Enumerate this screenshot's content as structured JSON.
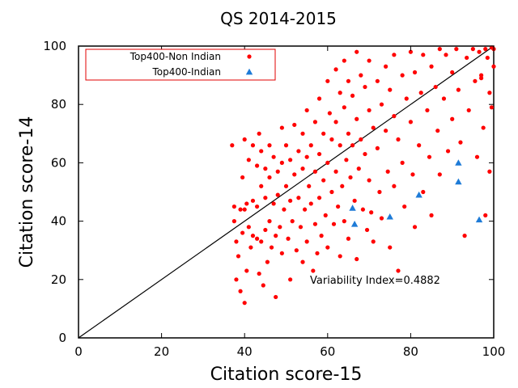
{
  "chart_data": {
    "type": "scatter",
    "title": "QS 2014-2015",
    "xlabel": "Citation score-15",
    "ylabel": "Citation score-14",
    "xlim": [
      0,
      100
    ],
    "ylim": [
      0,
      100
    ],
    "xticks": [
      0,
      20,
      40,
      60,
      80,
      100
    ],
    "yticks": [
      0,
      20,
      40,
      60,
      80,
      100
    ],
    "grid": false,
    "legend_position": "top-left",
    "annotation": "Variability Index=0.4882",
    "reference_line": {
      "x": [
        0,
        100
      ],
      "y": [
        0,
        100
      ],
      "color": "#000000"
    },
    "series": [
      {
        "name": "Top400-Non Indian",
        "marker": "circle",
        "color": "#ff0000",
        "points": [
          [
            37.0,
            66.0
          ],
          [
            37.5,
            45.0
          ],
          [
            37.5,
            40.0
          ],
          [
            38.0,
            33.0
          ],
          [
            38.0,
            20.0
          ],
          [
            38.5,
            28.0
          ],
          [
            39.0,
            44.0
          ],
          [
            39.0,
            16.0
          ],
          [
            39.5,
            55.0
          ],
          [
            39.5,
            36.0
          ],
          [
            40.0,
            68.0
          ],
          [
            40.0,
            44.0
          ],
          [
            40.0,
            12.0
          ],
          [
            40.5,
            98.0
          ],
          [
            40.5,
            46.0
          ],
          [
            40.5,
            23.0
          ],
          [
            41.0,
            61.0
          ],
          [
            41.0,
            38.0
          ],
          [
            41.5,
            31.0
          ],
          [
            42.0,
            66.0
          ],
          [
            42.0,
            47.0
          ],
          [
            42.0,
            35.0
          ],
          [
            42.5,
            96.0
          ],
          [
            42.5,
            89.0
          ],
          [
            43.0,
            59.0
          ],
          [
            43.0,
            45.0
          ],
          [
            43.0,
            34.0
          ],
          [
            43.5,
            70.0
          ],
          [
            43.5,
            22.0
          ],
          [
            44.0,
            64.0
          ],
          [
            44.0,
            52.0
          ],
          [
            44.0,
            33.0
          ],
          [
            44.5,
            18.0
          ],
          [
            45.0,
            58.0
          ],
          [
            45.0,
            48.0
          ],
          [
            45.0,
            37.0
          ],
          [
            45.5,
            26.0
          ],
          [
            46.0,
            66.0
          ],
          [
            46.0,
            55.0
          ],
          [
            46.0,
            40.0
          ],
          [
            46.5,
            31.0
          ],
          [
            47.0,
            62.0
          ],
          [
            47.0,
            46.0
          ],
          [
            47.5,
            35.0
          ],
          [
            47.5,
            14.0
          ],
          [
            48.0,
            57.0
          ],
          [
            48.0,
            49.0
          ],
          [
            48.5,
            38.0
          ],
          [
            49.0,
            72.0
          ],
          [
            49.0,
            60.0
          ],
          [
            49.0,
            29.0
          ],
          [
            49.5,
            44.0
          ],
          [
            50.0,
            66.0
          ],
          [
            50.0,
            52.0
          ],
          [
            50.5,
            34.0
          ],
          [
            51.0,
            61.0
          ],
          [
            51.0,
            47.0
          ],
          [
            51.0,
            20.0
          ],
          [
            51.5,
            40.0
          ],
          [
            52.0,
            73.0
          ],
          [
            52.0,
            56.0
          ],
          [
            52.5,
            30.0
          ],
          [
            53.0,
            64.0
          ],
          [
            53.0,
            48.0
          ],
          [
            53.5,
            38.0
          ],
          [
            54.0,
            70.0
          ],
          [
            54.0,
            58.0
          ],
          [
            54.0,
            26.0
          ],
          [
            54.5,
            44.0
          ],
          [
            55.0,
            78.0
          ],
          [
            55.0,
            62.0
          ],
          [
            55.0,
            33.0
          ],
          [
            55.5,
            52.0
          ],
          [
            56.0,
            66.0
          ],
          [
            56.0,
            46.0
          ],
          [
            56.5,
            23.0
          ],
          [
            57.0,
            74.0
          ],
          [
            57.0,
            57.0
          ],
          [
            57.0,
            39.0
          ],
          [
            57.5,
            29.0
          ],
          [
            58.0,
            82.0
          ],
          [
            58.0,
            63.0
          ],
          [
            58.0,
            48.0
          ],
          [
            58.5,
            35.0
          ],
          [
            59.0,
            70.0
          ],
          [
            59.0,
            54.0
          ],
          [
            59.5,
            42.0
          ],
          [
            60.0,
            88.0
          ],
          [
            60.0,
            60.0
          ],
          [
            60.0,
            31.0
          ],
          [
            60.5,
            77.0
          ],
          [
            61.0,
            68.0
          ],
          [
            61.0,
            50.0
          ],
          [
            61.5,
            39.0
          ],
          [
            62.0,
            92.0
          ],
          [
            62.0,
            74.0
          ],
          [
            62.0,
            57.0
          ],
          [
            62.5,
            45.0
          ],
          [
            63.0,
            84.0
          ],
          [
            63.0,
            66.0
          ],
          [
            63.0,
            28.0
          ],
          [
            63.5,
            52.0
          ],
          [
            64.0,
            95.0
          ],
          [
            64.0,
            79.0
          ],
          [
            64.0,
            40.0
          ],
          [
            64.5,
            61.0
          ],
          [
            65.0,
            88.0
          ],
          [
            65.0,
            70.0
          ],
          [
            65.0,
            34.0
          ],
          [
            65.5,
            55.0
          ],
          [
            66.0,
            83.0
          ],
          [
            66.0,
            66.0
          ],
          [
            66.5,
            47.0
          ],
          [
            67.0,
            98.0
          ],
          [
            67.0,
            75.0
          ],
          [
            67.0,
            27.0
          ],
          [
            67.5,
            58.0
          ],
          [
            68.0,
            90.0
          ],
          [
            68.0,
            68.0
          ],
          [
            68.5,
            44.0
          ],
          [
            69.0,
            86.0
          ],
          [
            69.0,
            63.0
          ],
          [
            69.5,
            37.0
          ],
          [
            70.0,
            95.0
          ],
          [
            70.0,
            78.0
          ],
          [
            70.0,
            54.0
          ],
          [
            70.5,
            43.0
          ],
          [
            71.0,
            72.0
          ],
          [
            71.0,
            33.0
          ],
          [
            72.0,
            88.0
          ],
          [
            72.0,
            65.0
          ],
          [
            72.5,
            50.0
          ],
          [
            73.0,
            80.0
          ],
          [
            73.0,
            41.0
          ],
          [
            74.0,
            93.0
          ],
          [
            74.0,
            71.0
          ],
          [
            74.5,
            57.0
          ],
          [
            75.0,
            85.0
          ],
          [
            75.0,
            31.0
          ],
          [
            76.0,
            97.0
          ],
          [
            76.0,
            76.0
          ],
          [
            76.0,
            52.0
          ],
          [
            77.0,
            68.0
          ],
          [
            77.0,
            23.0
          ],
          [
            78.0,
            90.0
          ],
          [
            78.0,
            60.0
          ],
          [
            78.5,
            45.0
          ],
          [
            79.0,
            82.0
          ],
          [
            80.0,
            98.0
          ],
          [
            80.0,
            74.0
          ],
          [
            80.5,
            56.0
          ],
          [
            81.0,
            91.0
          ],
          [
            81.0,
            38.0
          ],
          [
            82.0,
            66.0
          ],
          [
            82.5,
            84.0
          ],
          [
            83.0,
            97.0
          ],
          [
            83.0,
            50.0
          ],
          [
            84.0,
            78.0
          ],
          [
            84.5,
            62.0
          ],
          [
            85.0,
            93.0
          ],
          [
            85.0,
            42.0
          ],
          [
            86.0,
            86.0
          ],
          [
            86.5,
            71.0
          ],
          [
            87.0,
            99.0
          ],
          [
            87.0,
            56.0
          ],
          [
            88.0,
            82.0
          ],
          [
            88.5,
            97.0
          ],
          [
            89.0,
            64.0
          ],
          [
            90.0,
            91.0
          ],
          [
            90.0,
            75.0
          ],
          [
            91.0,
            99.0
          ],
          [
            91.5,
            85.0
          ],
          [
            92.0,
            67.0
          ],
          [
            93.0,
            35.0
          ],
          [
            93.5,
            96.0
          ],
          [
            94.0,
            78.0
          ],
          [
            95.0,
            99.0
          ],
          [
            95.5,
            88.0
          ],
          [
            96.0,
            62.0
          ],
          [
            96.5,
            98.0
          ],
          [
            97.0,
            90.0
          ],
          [
            97.5,
            72.0
          ],
          [
            98.0,
            99.0
          ],
          [
            98.0,
            42.0
          ],
          [
            98.5,
            96.0
          ],
          [
            99.0,
            57.0
          ],
          [
            99.0,
            84.0
          ],
          [
            99.5,
            99.5
          ],
          [
            99.5,
            79.0
          ],
          [
            100.0,
            99.0
          ],
          [
            100.0,
            93.0
          ],
          [
            97.0,
            89.0
          ]
        ]
      },
      {
        "name": "Top400-Indian",
        "marker": "triangle",
        "color": "#1e7bd7",
        "points": [
          [
            66.0,
            44.5
          ],
          [
            66.5,
            39.0
          ],
          [
            75.0,
            41.5
          ],
          [
            82.0,
            49.0
          ],
          [
            91.5,
            60.0
          ],
          [
            91.5,
            53.5
          ],
          [
            96.5,
            40.5
          ]
        ]
      }
    ]
  }
}
